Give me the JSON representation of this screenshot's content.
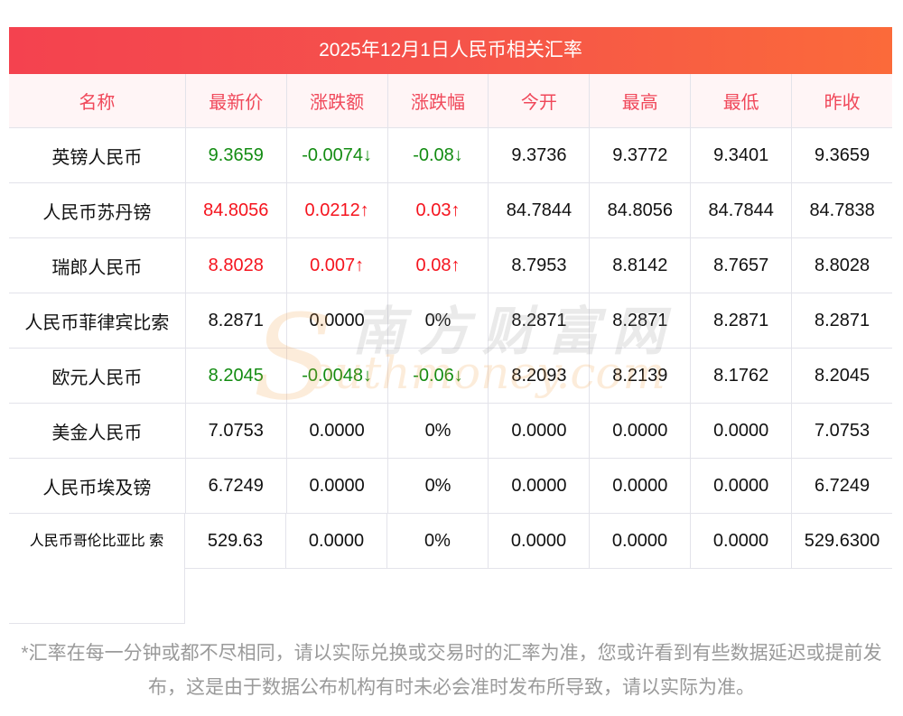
{
  "title": "2025年12月1日人民币相关汇率",
  "headers": [
    "名称",
    "最新价",
    "涨跌额",
    "涨跌幅",
    "今开",
    "最高",
    "最低",
    "昨收"
  ],
  "rows": [
    {
      "name": "英镑人民币",
      "trend": "down",
      "vals": [
        "9.3659",
        "-0.0074↓",
        "-0.08↓",
        "9.3736",
        "9.3772",
        "9.3401",
        "9.3659"
      ]
    },
    {
      "name": "人民币苏丹镑",
      "trend": "up",
      "vals": [
        "84.8056",
        "0.0212↑",
        "0.03↑",
        "84.7844",
        "84.8056",
        "84.7844",
        "84.7838"
      ]
    },
    {
      "name": "瑞郎人民币",
      "trend": "up",
      "vals": [
        "8.8028",
        "0.007↑",
        "0.08↑",
        "8.7953",
        "8.8142",
        "8.7657",
        "8.8028"
      ]
    },
    {
      "name": "人民币菲律宾比索",
      "trend": "flat",
      "vals": [
        "8.2871",
        "0.0000",
        "0%",
        "8.2871",
        "8.2871",
        "8.2871",
        "8.2871"
      ]
    },
    {
      "name": "欧元人民币",
      "trend": "down",
      "vals": [
        "8.2045",
        "-0.0048↓",
        "-0.06↓",
        "8.2093",
        "8.2139",
        "8.1762",
        "8.2045"
      ]
    },
    {
      "name": "美金人民币",
      "trend": "flat",
      "vals": [
        "7.0753",
        "0.0000",
        "0%",
        "0.0000",
        "0.0000",
        "0.0000",
        "7.0753"
      ]
    },
    {
      "name": "人民币埃及镑",
      "trend": "flat",
      "vals": [
        "6.7249",
        "0.0000",
        "0%",
        "0.0000",
        "0.0000",
        "0.0000",
        "6.7249"
      ]
    }
  ],
  "last_row": {
    "name_line1": "人民币哥伦比亚比",
    "name_line2": "索",
    "vals": [
      "529.63",
      "0.0000",
      "0%",
      "0.0000",
      "0.0000",
      "0.0000",
      "529.6300"
    ]
  },
  "note": "*汇率在每一分钟或都不尽相同，请以实际兑换或交易时的汇率为准，您或许看到有些数据延迟或提前发布，这是由于数据公布机构有时未必会准时发布所导致，请以实际为准。",
  "watermark": {
    "cn": "南方财富网",
    "en": "outhmoney.com",
    "s": "S"
  },
  "colors": {
    "up": "#f5141e",
    "down": "#138c12",
    "header_text": "#f0485a"
  }
}
